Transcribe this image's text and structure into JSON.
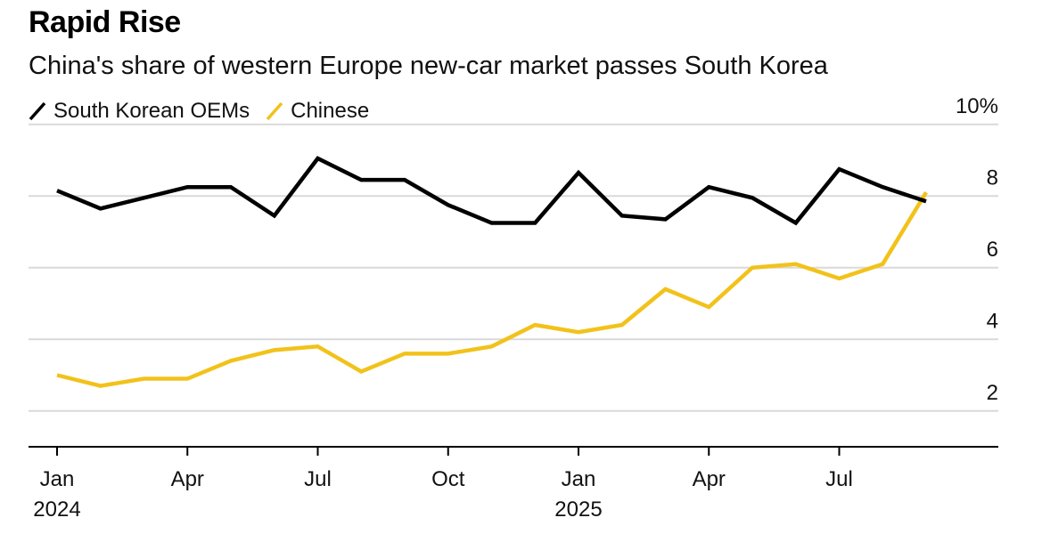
{
  "header": {
    "title": "Rapid Rise",
    "subtitle": "China's share of western Europe new-car market passes South Korea"
  },
  "colors": {
    "south_korea": "#000000",
    "chinese": "#f2c21b",
    "grid": "#d9d9d9",
    "axis": "#000000"
  },
  "chart_data": {
    "type": "line",
    "title": "Rapid Rise",
    "subtitle": "China's share of western Europe new-car market passes South Korea",
    "xlabel": "",
    "ylabel": "",
    "ylim": [
      1,
      10
    ],
    "y_ticks": [
      {
        "value": 10,
        "label": "10%"
      },
      {
        "value": 8,
        "label": "8"
      },
      {
        "value": 6,
        "label": "6"
      },
      {
        "value": 4,
        "label": "4"
      },
      {
        "value": 2,
        "label": "2"
      }
    ],
    "x_ticks": [
      {
        "index": 0,
        "label": "Jan",
        "year": "2024"
      },
      {
        "index": 3,
        "label": "Apr",
        "year": ""
      },
      {
        "index": 6,
        "label": "Jul",
        "year": ""
      },
      {
        "index": 9,
        "label": "Oct",
        "year": ""
      },
      {
        "index": 12,
        "label": "Jan",
        "year": "2025"
      },
      {
        "index": 15,
        "label": "Apr",
        "year": ""
      },
      {
        "index": 18,
        "label": "Jul",
        "year": ""
      }
    ],
    "grid": true,
    "legend_position": "top-left",
    "categories": [
      "Jan 2024",
      "Feb 2024",
      "Mar 2024",
      "Apr 2024",
      "May 2024",
      "Jun 2024",
      "Jul 2024",
      "Aug 2024",
      "Sep 2024",
      "Oct 2024",
      "Nov 2024",
      "Dec 2024",
      "Jan 2025",
      "Feb 2025",
      "Mar 2025",
      "Apr 2025",
      "May 2025",
      "Jun 2025",
      "Jul 2025",
      "Aug 2025",
      "Sep 2025"
    ],
    "series": [
      {
        "name": "South Korean OEMs",
        "color_key": "south_korea",
        "values": [
          8.15,
          7.65,
          7.95,
          8.25,
          8.25,
          7.45,
          9.05,
          8.45,
          8.45,
          7.75,
          7.25,
          7.25,
          8.65,
          7.45,
          7.35,
          8.25,
          7.95,
          7.25,
          8.75,
          8.25,
          7.85
        ]
      },
      {
        "name": "Chinese",
        "color_key": "chinese",
        "values": [
          3.0,
          2.7,
          2.9,
          2.9,
          3.4,
          3.7,
          3.8,
          3.1,
          3.6,
          3.6,
          3.8,
          4.4,
          4.2,
          4.4,
          5.4,
          4.9,
          6.0,
          6.1,
          5.7,
          6.1,
          8.1
        ]
      }
    ]
  }
}
